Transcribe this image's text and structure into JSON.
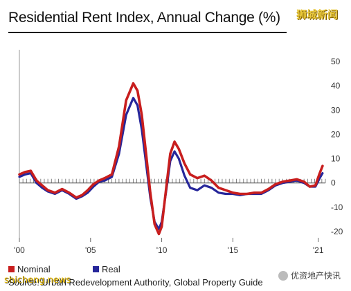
{
  "chart_title": "Residential Rent Index, Annual Change (%)",
  "watermarks": {
    "top": "狮城新闻",
    "bottom_left": "shicheng.news",
    "bottom_right": "优资地产快讯"
  },
  "source": "Source: Urban Redevelopment Authority, Global Property Guide",
  "colors": {
    "nominal": "#c81e1e",
    "real": "#26269a",
    "axis": "#444444"
  },
  "chart_data": {
    "type": "line",
    "title": "Residential Rent Index, Annual Change (%)",
    "xlabel": "",
    "ylabel": "",
    "xlim": [
      2000,
      2021.5
    ],
    "ylim": [
      -22,
      52
    ],
    "x_ticks": [
      {
        "value": 2000,
        "label": "'00"
      },
      {
        "value": 2005,
        "label": "'05"
      },
      {
        "value": 2010,
        "label": "'10"
      },
      {
        "value": 2015,
        "label": "'15"
      },
      {
        "value": 2021,
        "label": "'21"
      }
    ],
    "y_ticks": [
      -20,
      -10,
      0,
      10,
      20,
      30,
      40,
      50
    ],
    "legend_position": "bottom-left",
    "series": [
      {
        "name": "Nominal",
        "color": "#c81e1e",
        "x": [
          2000,
          2000.4,
          2000.8,
          2001.2,
          2001.6,
          2002.0,
          2002.5,
          2003.0,
          2003.5,
          2004.0,
          2004.4,
          2004.8,
          2005.2,
          2005.6,
          2006.0,
          2006.5,
          2007.0,
          2007.5,
          2008.0,
          2008.3,
          2008.6,
          2008.9,
          2009.2,
          2009.5,
          2009.8,
          2010.0,
          2010.3,
          2010.6,
          2010.9,
          2011.2,
          2011.6,
          2012.0,
          2012.5,
          2013.0,
          2013.5,
          2014.0,
          2014.5,
          2015.0,
          2015.5,
          2016.0,
          2016.5,
          2017.0,
          2017.5,
          2018.0,
          2018.5,
          2019.0,
          2019.5,
          2020.0,
          2020.4,
          2020.8,
          2021.1,
          2021.3
        ],
        "values": [
          3.5,
          4.5,
          5.0,
          1.0,
          -1.0,
          -3.0,
          -4.0,
          -2.5,
          -4.0,
          -6.0,
          -5.0,
          -3.0,
          -0.5,
          1.0,
          2.0,
          3.5,
          15.0,
          34.0,
          41.0,
          38.0,
          28.0,
          12.0,
          -4.0,
          -17.0,
          -21.0,
          -18.0,
          -3.0,
          12.0,
          17.0,
          14.0,
          8.0,
          3.5,
          2.0,
          3.0,
          1.0,
          -2.0,
          -3.0,
          -4.0,
          -4.5,
          -4.5,
          -4.0,
          -4.0,
          -2.5,
          -0.5,
          0.5,
          1.0,
          1.5,
          0.5,
          -1.5,
          -1.0,
          4.0,
          7.0
        ]
      },
      {
        "name": "Real",
        "color": "#26269a",
        "x": [
          2000,
          2000.4,
          2000.8,
          2001.2,
          2001.6,
          2002.0,
          2002.5,
          2003.0,
          2003.5,
          2004.0,
          2004.4,
          2004.8,
          2005.2,
          2005.6,
          2006.0,
          2006.5,
          2007.0,
          2007.5,
          2008.0,
          2008.3,
          2008.6,
          2008.9,
          2009.2,
          2009.5,
          2009.8,
          2010.0,
          2010.3,
          2010.6,
          2010.9,
          2011.2,
          2011.6,
          2012.0,
          2012.5,
          2013.0,
          2013.5,
          2014.0,
          2014.5,
          2015.0,
          2015.5,
          2016.0,
          2016.5,
          2017.0,
          2017.5,
          2018.0,
          2018.5,
          2019.0,
          2019.5,
          2020.0,
          2020.4,
          2020.8,
          2021.1,
          2021.3
        ],
        "values": [
          2.5,
          3.5,
          4.0,
          0.0,
          -2.0,
          -3.5,
          -4.5,
          -3.0,
          -4.5,
          -6.5,
          -5.5,
          -4.0,
          -1.5,
          0.5,
          1.0,
          2.5,
          12.0,
          28.0,
          35.0,
          32.0,
          22.0,
          8.0,
          -6.0,
          -16.0,
          -19.0,
          -16.0,
          -4.0,
          9.0,
          13.0,
          10.0,
          3.0,
          -2.0,
          -3.0,
          -1.0,
          -2.0,
          -4.0,
          -4.5,
          -4.5,
          -5.0,
          -4.5,
          -4.5,
          -4.5,
          -3.0,
          -1.0,
          0.0,
          0.5,
          1.0,
          0.0,
          -1.5,
          -1.5,
          2.0,
          4.0
        ]
      }
    ]
  }
}
